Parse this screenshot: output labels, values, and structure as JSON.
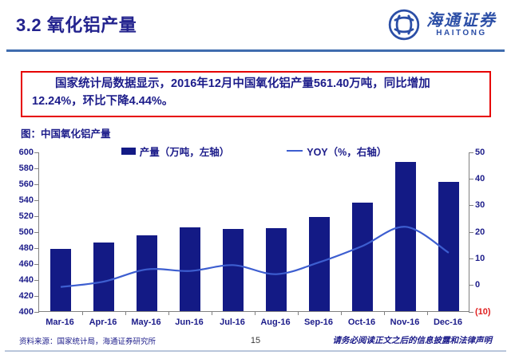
{
  "header": {
    "title": "3.2 氧化铝产量",
    "logo": {
      "cn": "海通证券",
      "en": "HAITONG"
    }
  },
  "summary": {
    "text": "国家统计局数据显示，2016年12月中国氧化铝产量561.40万吨，同比增加12.24%，环比下降4.44%。"
  },
  "figure_label": "图：中国氧化铝产量",
  "chart_data": {
    "type": "bar",
    "title": "中国氧化铝产量",
    "categories": [
      "Mar-16",
      "Apr-16",
      "May-16",
      "Jun-16",
      "Jul-16",
      "Aug-16",
      "Sep-16",
      "Oct-16",
      "Nov-16",
      "Dec-16"
    ],
    "series": [
      {
        "name": "产量（万吨，左轴）",
        "type": "bar",
        "axis": "left",
        "values": [
          478,
          486,
          495,
          505,
          503,
          504,
          518,
          536,
          587,
          561.4
        ]
      },
      {
        "name": "YOY（%，右轴）",
        "type": "line",
        "axis": "right",
        "values": [
          -0.6,
          1.4,
          6.0,
          5.4,
          7.6,
          4.2,
          8.7,
          14.8,
          22.0,
          12.24
        ]
      }
    ],
    "left_axis": {
      "min": 400,
      "max": 600,
      "step": 20,
      "tick_labels": [
        "600",
        "580",
        "560",
        "540",
        "520",
        "500",
        "480",
        "460",
        "440",
        "420",
        "400"
      ]
    },
    "right_axis": {
      "min": -10,
      "max": 50,
      "step": 10,
      "tick_labels": [
        "50",
        "40",
        "30",
        "20",
        "10",
        "0",
        "(10)"
      ]
    },
    "legend_position": "top",
    "grid": false,
    "colors": {
      "bar": "#131a85",
      "line": "#3d5ed0",
      "negative_tick": "#e02020"
    }
  },
  "footer": {
    "source": "资料来源：国家统计局，海通证券研究所",
    "page": "15",
    "disclaimer": "请务必阅读正文之后的信息披露和法律声明"
  }
}
